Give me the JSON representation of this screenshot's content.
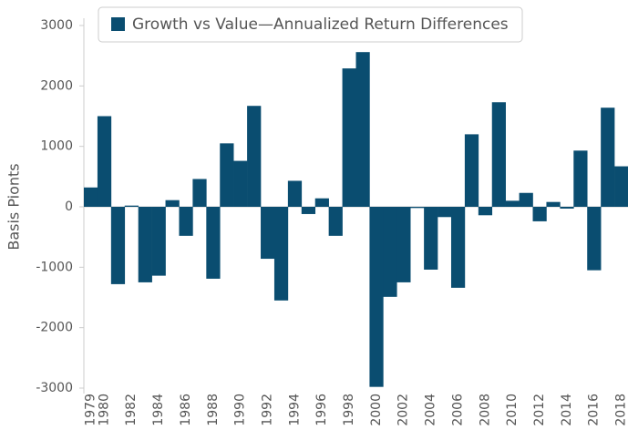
{
  "chart_data": {
    "type": "bar",
    "legend_label": "Growth vs Value—Annualized Return Differences",
    "y_label": "Basis Pionts",
    "color": "#0a4d70",
    "categories": [
      "1979",
      "1980",
      null,
      "1982",
      null,
      "1984",
      null,
      "1986",
      null,
      "1988",
      null,
      "1990",
      null,
      "1992",
      null,
      "1994",
      null,
      "1996",
      null,
      "1998",
      null,
      "2000",
      null,
      "2002",
      null,
      "2004",
      null,
      "2006",
      null,
      "2008",
      null,
      "2010",
      null,
      "2012",
      null,
      "2014",
      null,
      "2016",
      null,
      "2018"
    ],
    "values": [
      320,
      1500,
      -1280,
      20,
      -1250,
      -1140,
      110,
      -480,
      460,
      -1190,
      1050,
      760,
      1670,
      -860,
      -1550,
      430,
      -120,
      140,
      -480,
      2290,
      2560,
      -2980,
      -1490,
      -1250,
      -20,
      -1040,
      -170,
      -1340,
      1200,
      -140,
      1730,
      100,
      230,
      -240,
      80,
      -30,
      930,
      -1050,
      1640,
      670
    ],
    "ylim": [
      -3000,
      3000
    ],
    "yticks": [
      3000,
      2000,
      1000,
      0,
      -1000,
      -2000,
      -3000
    ]
  }
}
